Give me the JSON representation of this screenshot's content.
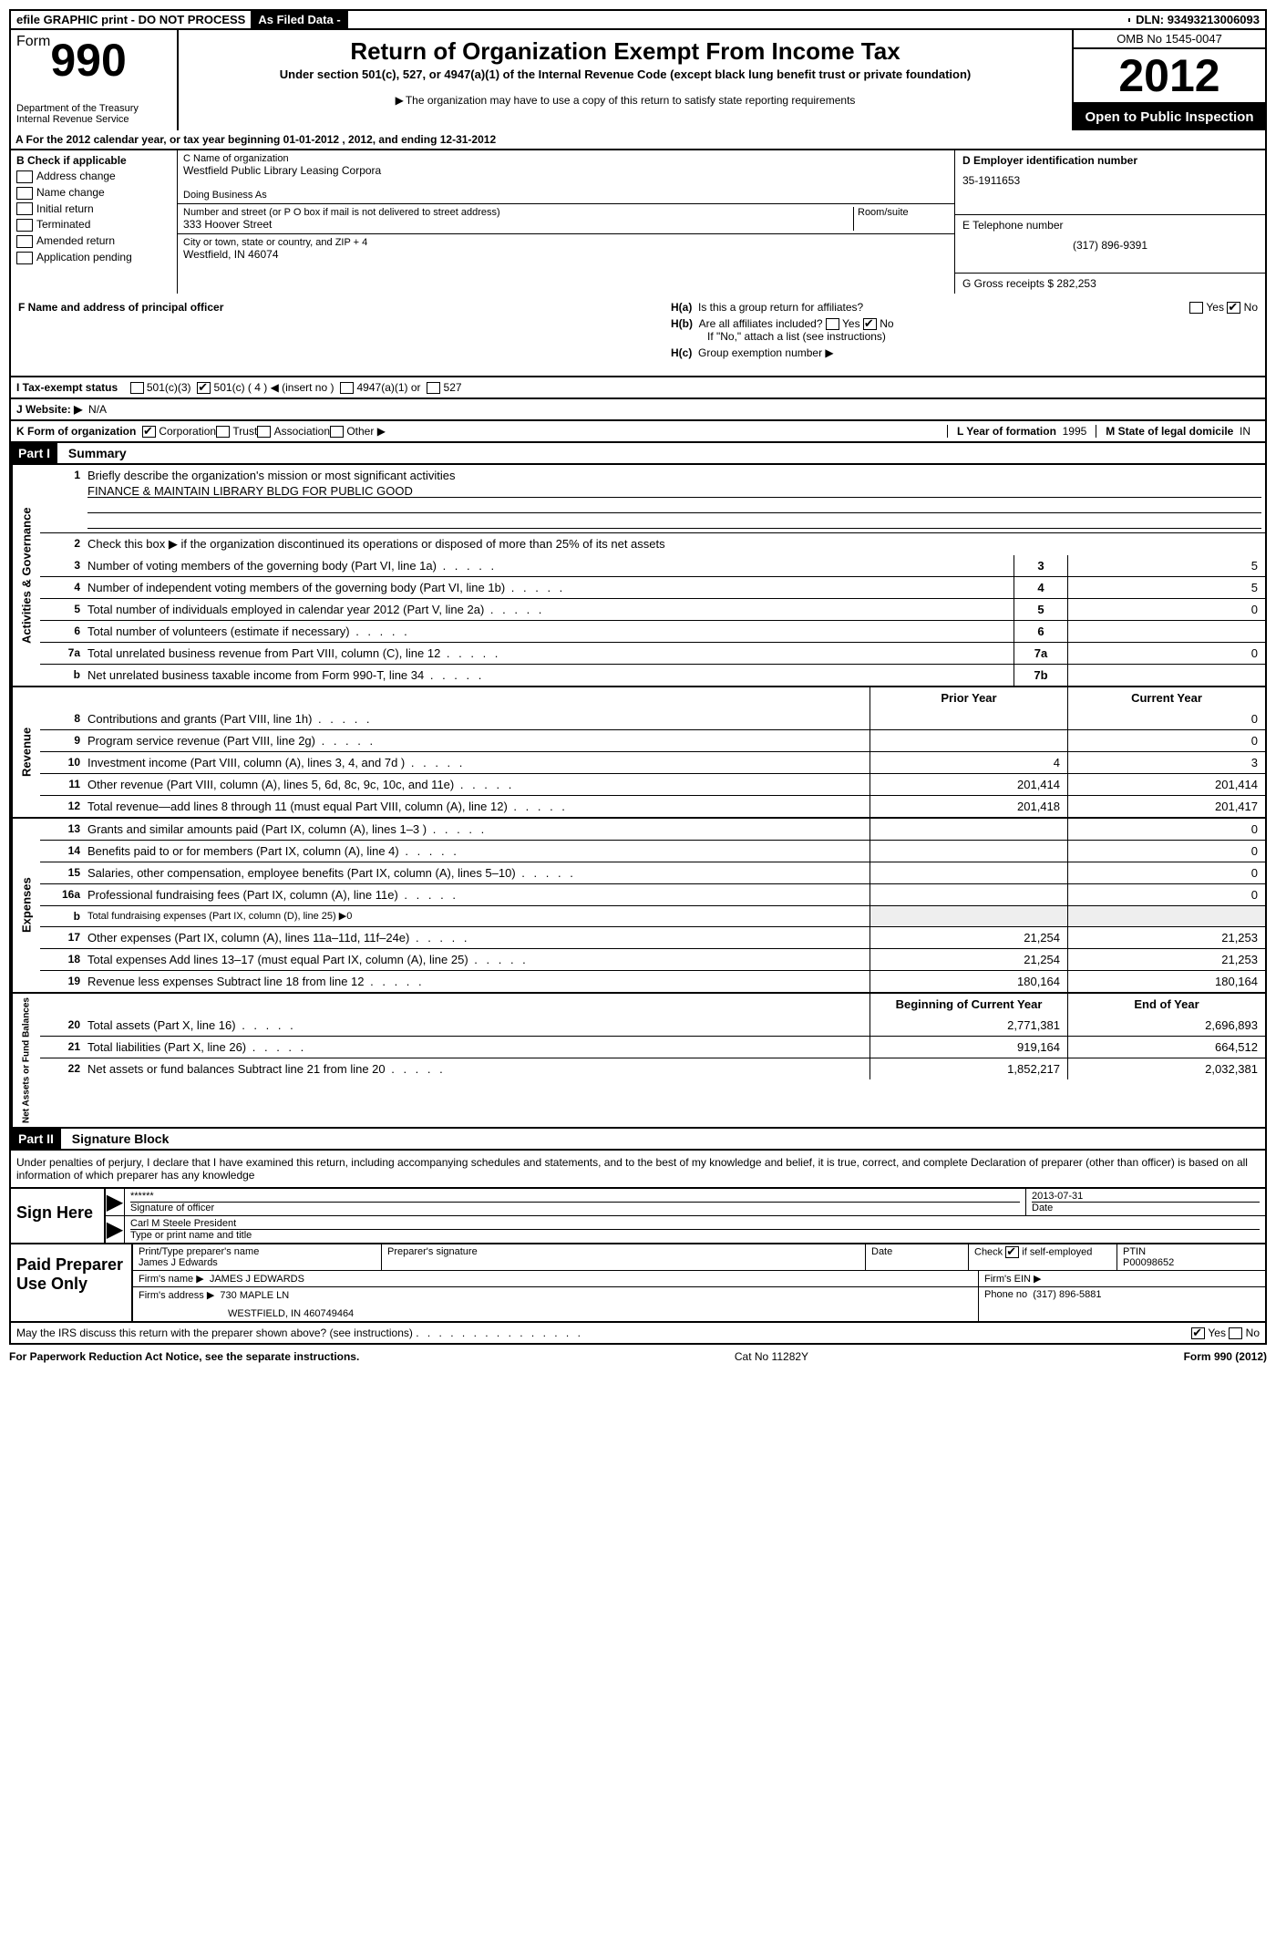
{
  "top_bar": {
    "efile": "efile GRAPHIC print - DO NOT PROCESS",
    "as_filed": "As Filed Data -",
    "dln_label": "DLN:",
    "dln": "93493213006093"
  },
  "header": {
    "form_word": "Form",
    "form_num": "990",
    "dept1": "Department of the Treasury",
    "dept2": "Internal Revenue Service",
    "title": "Return of Organization Exempt From Income Tax",
    "sub1": "Under section 501(c), 527, or 4947(a)(1) of the Internal Revenue Code (except black lung benefit trust or private foundation)",
    "sub2": "The organization may have to use a copy of this return to satisfy state reporting requirements",
    "omb": "OMB No 1545-0047",
    "year": "2012",
    "open": "Open to Public Inspection"
  },
  "line_a": "A For the 2012 calendar year, or tax year beginning 01-01-2012    , 2012, and ending 12-31-2012",
  "col_b": {
    "title": "B Check if applicable",
    "items": [
      "Address change",
      "Name change",
      "Initial return",
      "Terminated",
      "Amended return",
      "Application pending"
    ]
  },
  "col_c": {
    "name_lbl": "C Name of organization",
    "name": "Westfield Public Library Leasing Corpora",
    "dba_lbl": "Doing Business As",
    "dba": "",
    "addr_lbl": "Number and street (or P O  box if mail is not delivered to street address)",
    "addr": "333 Hoover Street",
    "room_lbl": "Room/suite",
    "city_lbl": "City or town, state or country, and ZIP + 4",
    "city": "Westfield, IN  46074",
    "f_lbl": "F  Name and address of principal officer"
  },
  "col_d": {
    "ein_lbl": "D Employer identification number",
    "ein": "35-1911653",
    "tel_lbl": "E Telephone number",
    "tel": "(317) 896-9391",
    "gross_lbl": "G Gross receipts $",
    "gross": "282,253"
  },
  "h": {
    "a": "Is this a group return for affiliates?",
    "b": "Are all affiliates included?",
    "b2": "If \"No,\" attach a list  (see instructions)",
    "c": "Group exemption number"
  },
  "row_i": {
    "label": "I  Tax-exempt status",
    "opts": [
      "501(c)(3)",
      "501(c) ( 4 ) ◀ (insert no )",
      "4947(a)(1) or",
      "527"
    ]
  },
  "row_j": {
    "label": "J  Website: ▶",
    "val": "N/A"
  },
  "row_k": {
    "label": "K Form of organization",
    "opts": [
      "Corporation",
      "Trust",
      "Association",
      "Other ▶"
    ],
    "year_lbl": "L Year of formation",
    "year": "1995",
    "state_lbl": "M State of legal domicile",
    "state": "IN"
  },
  "part1": {
    "tag": "Part I",
    "title": "Summary"
  },
  "activities": {
    "tab": "Activities & Governance",
    "l1": "Briefly describe the organization's mission or most significant activities",
    "l1_val": "FINANCE & MAINTAIN LIBRARY BLDG FOR PUBLIC GOOD",
    "l2": "Check this box ▶     if the organization discontinued its operations or disposed of more than 25% of its net assets",
    "rows": [
      {
        "n": "3",
        "d": "Number of voting members of the governing body (Part VI, line 1a)",
        "b": "3",
        "v": "5"
      },
      {
        "n": "4",
        "d": "Number of independent voting members of the governing body (Part VI, line 1b)",
        "b": "4",
        "v": "5"
      },
      {
        "n": "5",
        "d": "Total number of individuals employed in calendar year 2012 (Part V, line 2a)",
        "b": "5",
        "v": "0"
      },
      {
        "n": "6",
        "d": "Total number of volunteers (estimate if necessary)",
        "b": "6",
        "v": ""
      },
      {
        "n": "7a",
        "d": "Total unrelated business revenue from Part VIII, column (C), line 12",
        "b": "7a",
        "v": "0"
      },
      {
        "n": "b",
        "d": "Net unrelated business taxable income from Form 990-T, line 34",
        "b": "7b",
        "v": ""
      }
    ]
  },
  "revenue": {
    "tab": "Revenue",
    "hdr_prior": "Prior Year",
    "hdr_curr": "Current Year",
    "rows": [
      {
        "n": "8",
        "d": "Contributions and grants (Part VIII, line 1h)",
        "p": "",
        "c": "0"
      },
      {
        "n": "9",
        "d": "Program service revenue (Part VIII, line 2g)",
        "p": "",
        "c": "0"
      },
      {
        "n": "10",
        "d": "Investment income (Part VIII, column (A), lines 3, 4, and 7d )",
        "p": "4",
        "c": "3"
      },
      {
        "n": "11",
        "d": "Other revenue (Part VIII, column (A), lines 5, 6d, 8c, 9c, 10c, and 11e)",
        "p": "201,414",
        "c": "201,414"
      },
      {
        "n": "12",
        "d": "Total revenue—add lines 8 through 11 (must equal Part VIII, column (A), line 12)",
        "p": "201,418",
        "c": "201,417"
      }
    ]
  },
  "expenses": {
    "tab": "Expenses",
    "rows": [
      {
        "n": "13",
        "d": "Grants and similar amounts paid (Part IX, column (A), lines 1–3 )",
        "p": "",
        "c": "0"
      },
      {
        "n": "14",
        "d": "Benefits paid to or for members (Part IX, column (A), line 4)",
        "p": "",
        "c": "0"
      },
      {
        "n": "15",
        "d": "Salaries, other compensation, employee benefits (Part IX, column (A), lines 5–10)",
        "p": "",
        "c": "0"
      },
      {
        "n": "16a",
        "d": "Professional fundraising fees (Part IX, column (A), line 11e)",
        "p": "",
        "c": "0"
      },
      {
        "n": "b",
        "d": "Total fundraising expenses (Part IX, column (D), line 25) ▶0",
        "p": null,
        "c": null
      },
      {
        "n": "17",
        "d": "Other expenses (Part IX, column (A), lines 11a–11d, 11f–24e)",
        "p": "21,254",
        "c": "21,253"
      },
      {
        "n": "18",
        "d": "Total expenses  Add lines 13–17 (must equal Part IX, column (A), line 25)",
        "p": "21,254",
        "c": "21,253"
      },
      {
        "n": "19",
        "d": "Revenue less expenses  Subtract line 18 from line 12",
        "p": "180,164",
        "c": "180,164"
      }
    ]
  },
  "netassets": {
    "tab": "Net Assets or Fund Balances",
    "hdr_prior": "Beginning of Current Year",
    "hdr_curr": "End of Year",
    "rows": [
      {
        "n": "20",
        "d": "Total assets (Part X, line 16)",
        "p": "2,771,381",
        "c": "2,696,893"
      },
      {
        "n": "21",
        "d": "Total liabilities (Part X, line 26)",
        "p": "919,164",
        "c": "664,512"
      },
      {
        "n": "22",
        "d": "Net assets or fund balances  Subtract line 21 from line 20",
        "p": "1,852,217",
        "c": "2,032,381"
      }
    ]
  },
  "part2": {
    "tag": "Part II",
    "title": "Signature Block"
  },
  "sig_text": "Under penalties of perjury, I declare that I have examined this return, including accompanying schedules and statements, and to the best of my knowledge and belief, it is true, correct, and complete  Declaration of preparer (other than officer) is based on all information of which preparer has any knowledge",
  "sign": {
    "left": "Sign Here",
    "stars": "******",
    "sig_lbl": "Signature of officer",
    "date": "2013-07-31",
    "date_lbl": "Date",
    "name": "Carl M Steele President",
    "name_lbl": "Type or print name and title"
  },
  "preparer": {
    "left": "Paid Preparer Use Only",
    "name_lbl": "Print/Type preparer's name",
    "name": "James J Edwards",
    "sig_lbl": "Preparer's signature",
    "date_lbl": "Date",
    "self_lbl": "Check       if self-employed",
    "ptin_lbl": "PTIN",
    "ptin": "P00098652",
    "firm_name_lbl": "Firm's name    ▶",
    "firm_name": "JAMES J EDWARDS",
    "firm_ein_lbl": "Firm's EIN ▶",
    "firm_addr_lbl": "Firm's address ▶",
    "firm_addr": "730 MAPLE LN",
    "firm_addr2": "WESTFIELD, IN  460749464",
    "phone_lbl": "Phone no",
    "phone": "(317) 896-5881",
    "discuss": "May the IRS discuss this return with the preparer shown above? (see instructions)"
  },
  "footer": {
    "left": "For Paperwork Reduction Act Notice, see the separate instructions.",
    "mid": "Cat No 11282Y",
    "right": "Form 990 (2012)"
  }
}
